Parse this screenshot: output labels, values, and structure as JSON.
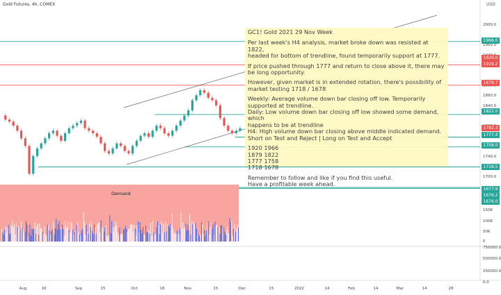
{
  "header": {
    "title": "Gold Futures, 4h, COMEX",
    "currency": "USD"
  },
  "note": {
    "title": "GC1! Gold 2021 29 Nov Week",
    "paragraphs": [
      "Per last week's H4 analysis, market broke down was resisted at 1822,\n headed for bottom of trendline, found temporarily support at 1777.",
      "If price pushed through 1777 and return to close above it, there may\n be long opportunity.",
      "However, given market is in extended rotation, there's possibility of\n market testing  1718 / 1678",
      "Weekly: Average volume down bar closing off low. Temporarily supported at trendline.\nDaily: Low volume down bar closing off low showed some demand, which\n happens to be at trendline\nH4: High volume down bar closing above middle indicated demand.\nShort on Test and Reject  |   Long  on Test and Accept",
      "1920      1966\n1879      1822\n1777      1758\n1718      1678",
      "Remember to follow and like if you find this useful.\nHave a profitable week ahead."
    ]
  },
  "demand_label": "Demand",
  "price_axis": {
    "ticks": [
      "2000.0",
      "1960.0",
      "1940.0",
      "1920.0",
      "1880.0",
      "1860.0",
      "1840.0",
      "1800.0",
      "1780.0",
      "1760.0",
      "1740.0",
      "1700.0"
    ],
    "tick_values": [
      2000,
      1960,
      1940,
      1920,
      1880,
      1860,
      1840,
      1800,
      1780,
      1760,
      1740,
      1700
    ]
  },
  "volume_axis": {
    "ticks": [
      "150K",
      "100K",
      "50K",
      "0",
      "750000.0",
      "500000.0",
      "250000.0",
      "0.0"
    ]
  },
  "time_axis": [
    "Aug",
    "16",
    "Sep",
    "15",
    "Oct",
    "18",
    "Nov",
    "15",
    "Dec",
    "15",
    "2022",
    "14",
    "Feb",
    "14",
    "Mar",
    "14",
    "28"
  ],
  "price_tags": [
    {
      "label": "1966.0",
      "color": "#26a69a",
      "value": 1966
    },
    {
      "label": "1920.0",
      "color": "#ef5350",
      "value": 1920
    },
    {
      "label": "1919.2",
      "color": "#ef5350",
      "value": 1919.2
    },
    {
      "label": "1879.7",
      "color": "#ef5350",
      "value": 1879.7
    },
    {
      "label": "1822.0",
      "color": "#26a69a",
      "value": 1822
    },
    {
      "label": "1792.3",
      "color": "#ef5350",
      "value": 1792.3
    },
    {
      "label": "1777.4",
      "color": "#26a69a",
      "value": 1777.4
    },
    {
      "label": "1758.0",
      "color": "#26a69a",
      "value": 1758
    },
    {
      "label": "1718.5",
      "color": "#26a69a",
      "value": 1718.5
    },
    {
      "label": "1677.9",
      "color": "#26a69a",
      "value": 1677.9
    },
    {
      "label": "1676.2",
      "color": "#26a69a",
      "value": 1676.2
    },
    {
      "label": "1676.0",
      "color": "#26a69a",
      "value": 1676
    }
  ],
  "chart_data": {
    "type": "line",
    "title": "Gold Futures, 4h, COMEX",
    "series": [
      {
        "values": [
          1820,
          1812,
          1808,
          1800,
          1790,
          1775,
          1760,
          1705,
          1740,
          1755,
          1765,
          1775,
          1785,
          1790,
          1780,
          1770,
          1785,
          1795,
          1800,
          1805,
          1810,
          1795,
          1790,
          1785,
          1778,
          1765,
          1750,
          1745,
          1755,
          1765,
          1760,
          1750,
          1745,
          1760,
          1770,
          1780,
          1785,
          1778,
          1790,
          1800,
          1795,
          1785,
          1780,
          1790,
          1800,
          1810,
          1820,
          1830,
          1850,
          1860,
          1870,
          1865,
          1855,
          1850,
          1840,
          1815,
          1800,
          1790,
          1785,
          1790,
          1795
        ]
      }
    ],
    "horizontal_levels": [
      1966,
      1920,
      1879.7,
      1822,
      1777.4,
      1758,
      1718.5,
      1677.9
    ],
    "ylim": [
      1660,
      2030
    ],
    "colors": {
      "up": "#26a69a",
      "down": "#ef5350",
      "volume_up": "#2962ff",
      "volume_bg": "#f8a5a0"
    }
  }
}
